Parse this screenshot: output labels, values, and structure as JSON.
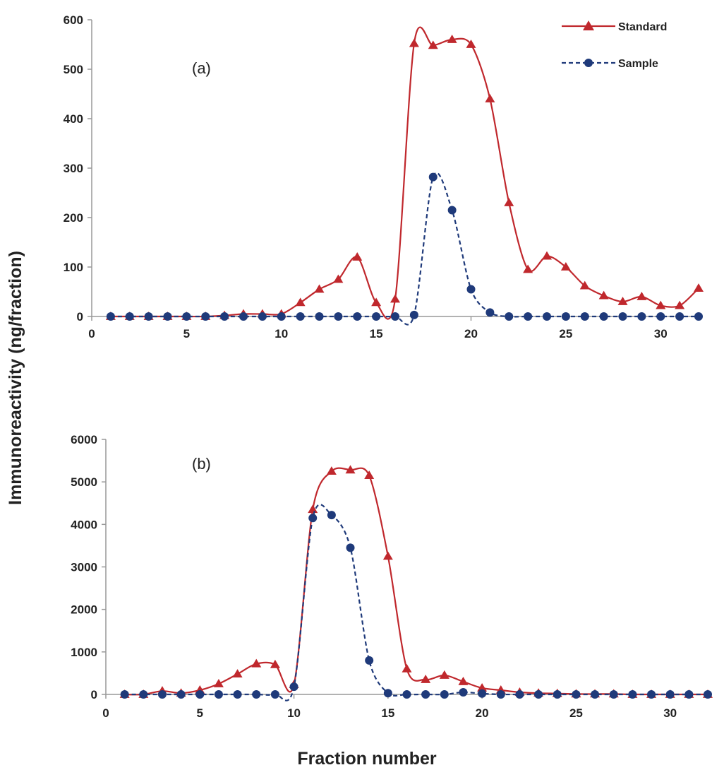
{
  "figure": {
    "ylabel": "Immunoreactivity (ng/fraction)",
    "xlabel": "Fraction number",
    "legend": {
      "position": "top-right"
    },
    "colors": {
      "standard": "#c0282d",
      "sample": "#1f3a7a",
      "axis": "#999999"
    }
  },
  "chart_data": [
    {
      "type": "line",
      "panel_label": "(a)",
      "xlim": [
        0,
        32
      ],
      "ylim": [
        0,
        600
      ],
      "x_ticks": [
        0,
        5,
        10,
        15,
        20,
        25,
        30
      ],
      "y_ticks": [
        0,
        100,
        200,
        300,
        400,
        500,
        600
      ],
      "grid": false,
      "x": [
        1,
        2,
        3,
        4,
        5,
        6,
        7,
        8,
        9,
        10,
        11,
        12,
        13,
        14,
        15,
        16,
        17,
        18,
        19,
        20,
        21,
        22,
        23,
        24,
        25,
        26,
        27,
        28,
        29,
        30,
        31,
        32
      ],
      "series": [
        {
          "name": "Standard",
          "key": "standard",
          "marker": "triangle",
          "line": "solid",
          "values": [
            0,
            0,
            0,
            0,
            0,
            0,
            2,
            5,
            5,
            5,
            28,
            55,
            75,
            120,
            28,
            35,
            552,
            548,
            560,
            550,
            440,
            230,
            95,
            122,
            100,
            62,
            42,
            30,
            40,
            22,
            22,
            57
          ]
        },
        {
          "name": "Sample",
          "key": "sample",
          "marker": "circle",
          "line": "dashed",
          "values": [
            0,
            0,
            0,
            0,
            0,
            0,
            0,
            0,
            0,
            0,
            0,
            0,
            0,
            0,
            0,
            0,
            3,
            282,
            215,
            55,
            8,
            0,
            0,
            0,
            0,
            0,
            0,
            0,
            0,
            0,
            0,
            0
          ]
        }
      ]
    },
    {
      "type": "line",
      "panel_label": "(b)",
      "xlim": [
        0,
        32
      ],
      "ylim": [
        0,
        6000
      ],
      "x_ticks": [
        0,
        5,
        10,
        15,
        20,
        25,
        30
      ],
      "y_ticks": [
        0,
        1000,
        2000,
        3000,
        4000,
        5000,
        6000
      ],
      "grid": false,
      "x": [
        1,
        2,
        3,
        4,
        5,
        6,
        7,
        8,
        9,
        10,
        11,
        12,
        13,
        14,
        15,
        16,
        17,
        18,
        19,
        20,
        21,
        22,
        23,
        24,
        25,
        26,
        27,
        28,
        29,
        30,
        31,
        32
      ],
      "series": [
        {
          "name": "Standard",
          "key": "standard",
          "marker": "triangle",
          "line": "solid",
          "values": [
            0,
            0,
            80,
            30,
            100,
            250,
            480,
            720,
            700,
            230,
            4350,
            5250,
            5280,
            5150,
            3250,
            600,
            350,
            450,
            300,
            150,
            100,
            50,
            30,
            20,
            10,
            10,
            10,
            0,
            0,
            0,
            0,
            0
          ]
        },
        {
          "name": "Sample",
          "key": "sample",
          "marker": "circle",
          "line": "dashed",
          "values": [
            0,
            0,
            0,
            0,
            0,
            0,
            0,
            0,
            0,
            180,
            4150,
            4220,
            3450,
            800,
            30,
            0,
            0,
            0,
            50,
            20,
            0,
            0,
            0,
            0,
            0,
            0,
            0,
            0,
            0,
            0,
            0,
            0
          ]
        }
      ]
    }
  ]
}
